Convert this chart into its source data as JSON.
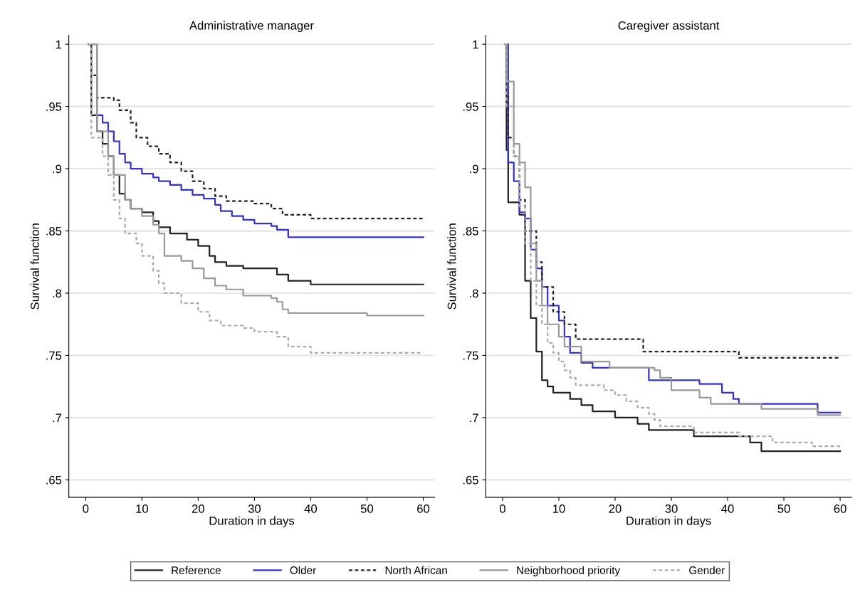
{
  "chart_data": [
    {
      "type": "step",
      "title": "Administrative manager",
      "xlabel": "Duration in days",
      "ylabel": "Survival function",
      "xlim": [
        -3,
        62
      ],
      "ylim": [
        0.636,
        1.007
      ],
      "xticks": [
        0,
        10,
        20,
        30,
        40,
        50,
        60
      ],
      "yticks": [
        {
          "value": 0.65,
          "label": ".65"
        },
        {
          "value": 0.7,
          "label": ".7"
        },
        {
          "value": 0.75,
          "label": ".75"
        },
        {
          "value": 0.8,
          "label": ".8"
        },
        {
          "value": 0.85,
          "label": ".85"
        },
        {
          "value": 0.9,
          "label": ".9"
        },
        {
          "value": 0.95,
          "label": ".95"
        },
        {
          "value": 1,
          "label": "1"
        }
      ],
      "grid": "y",
      "legend": "bottom",
      "series": [
        {
          "name": "Reference",
          "color": "#222222",
          "line_style": "solid",
          "x": [
            0.5,
            1,
            2,
            3,
            4,
            5,
            6,
            7,
            8,
            10,
            12,
            13,
            15,
            18,
            20,
            22,
            23,
            25,
            28,
            33,
            34,
            36,
            40,
            60
          ],
          "values": [
            1,
            0.943,
            0.93,
            0.92,
            0.91,
            0.895,
            0.88,
            0.875,
            0.868,
            0.865,
            0.858,
            0.853,
            0.848,
            0.843,
            0.838,
            0.83,
            0.825,
            0.822,
            0.82,
            0.82,
            0.815,
            0.81,
            0.807,
            0.807
          ]
        },
        {
          "name": "Older",
          "color": "#3333cc",
          "line_style": "solid",
          "x": [
            0.5,
            2,
            3,
            4,
            5,
            6,
            7,
            8,
            10,
            12,
            13,
            15,
            17,
            19,
            21,
            23,
            24,
            26,
            28,
            30,
            33,
            34,
            36,
            60
          ],
          "values": [
            1,
            0.943,
            0.937,
            0.93,
            0.922,
            0.912,
            0.905,
            0.9,
            0.896,
            0.893,
            0.89,
            0.887,
            0.883,
            0.879,
            0.876,
            0.871,
            0.866,
            0.862,
            0.859,
            0.856,
            0.854,
            0.851,
            0.845,
            0.845
          ]
        },
        {
          "name": "North African",
          "color": "#222222",
          "line_style": "dashed",
          "x": [
            0.5,
            1,
            2,
            5,
            6,
            8,
            9,
            11,
            13,
            15,
            17,
            19,
            21,
            23,
            25,
            30,
            33,
            35,
            40,
            60
          ],
          "values": [
            1,
            0.975,
            0.957,
            0.955,
            0.947,
            0.937,
            0.925,
            0.918,
            0.912,
            0.905,
            0.898,
            0.89,
            0.884,
            0.878,
            0.874,
            0.872,
            0.868,
            0.863,
            0.86,
            0.86
          ]
        },
        {
          "name": "Neighborhood priority",
          "color": "#999999",
          "line_style": "solid",
          "x": [
            0.5,
            2,
            4,
            5,
            7,
            8,
            10,
            12,
            13,
            14,
            17,
            19,
            21,
            23,
            25,
            28,
            33,
            34,
            35,
            36,
            50,
            60
          ],
          "values": [
            1,
            0.93,
            0.91,
            0.895,
            0.875,
            0.868,
            0.862,
            0.855,
            0.848,
            0.83,
            0.826,
            0.82,
            0.812,
            0.806,
            0.803,
            0.798,
            0.796,
            0.793,
            0.787,
            0.784,
            0.782,
            0.782
          ]
        },
        {
          "name": "Gender",
          "color": "#aaaaaa",
          "line_style": "dashed",
          "x": [
            0.5,
            1,
            3,
            4,
            5,
            6,
            7,
            9,
            10,
            12,
            13,
            14,
            17,
            20,
            22,
            24,
            28,
            30,
            34,
            36,
            40,
            60
          ],
          "values": [
            1,
            0.925,
            0.91,
            0.895,
            0.875,
            0.86,
            0.848,
            0.84,
            0.83,
            0.818,
            0.808,
            0.8,
            0.792,
            0.785,
            0.778,
            0.774,
            0.772,
            0.769,
            0.765,
            0.757,
            0.752,
            0.752
          ]
        }
      ]
    },
    {
      "type": "step",
      "title": "Caregiver assistant",
      "xlabel": "Duration in days",
      "ylabel": "Survival function",
      "xlim": [
        -3,
        62
      ],
      "ylim": [
        0.636,
        1.007
      ],
      "xticks": [
        0,
        10,
        20,
        30,
        40,
        50,
        60
      ],
      "yticks": [
        {
          "value": 0.65,
          "label": ".65"
        },
        {
          "value": 0.7,
          "label": ".7"
        },
        {
          "value": 0.75,
          "label": ".75"
        },
        {
          "value": 0.8,
          "label": ".8"
        },
        {
          "value": 0.85,
          "label": ".85"
        },
        {
          "value": 0.9,
          "label": ".9"
        },
        {
          "value": 0.95,
          "label": ".95"
        },
        {
          "value": 1,
          "label": "1"
        }
      ],
      "grid": "y",
      "legend": "bottom",
      "series": [
        {
          "name": "Reference",
          "color": "#222222",
          "line_style": "solid",
          "x": [
            0.5,
            0.7,
            1,
            3,
            4,
            5,
            6,
            7,
            8,
            9,
            12,
            14,
            16,
            20,
            24,
            26,
            33,
            34,
            42,
            44,
            46,
            60
          ],
          "values": [
            1,
            0.915,
            0.873,
            0.863,
            0.81,
            0.78,
            0.753,
            0.73,
            0.725,
            0.72,
            0.715,
            0.71,
            0.705,
            0.7,
            0.695,
            0.69,
            0.69,
            0.685,
            0.685,
            0.68,
            0.673,
            0.673
          ]
        },
        {
          "name": "Older",
          "color": "#3333cc",
          "line_style": "solid",
          "x": [
            0.5,
            1,
            2,
            3,
            4,
            5,
            6,
            7,
            8,
            10,
            11,
            12,
            14,
            16,
            25,
            26,
            35,
            39,
            41,
            42,
            56,
            60
          ],
          "values": [
            1,
            0.905,
            0.89,
            0.865,
            0.86,
            0.835,
            0.82,
            0.805,
            0.79,
            0.778,
            0.765,
            0.752,
            0.744,
            0.74,
            0.74,
            0.73,
            0.727,
            0.72,
            0.715,
            0.711,
            0.704,
            0.704
          ]
        },
        {
          "name": "North African",
          "color": "#222222",
          "line_style": "dashed",
          "x": [
            0.5,
            0.7,
            1,
            2,
            3,
            4,
            6,
            7,
            9,
            11,
            13,
            25,
            42,
            60
          ],
          "values": [
            1,
            0.96,
            0.925,
            0.91,
            0.875,
            0.85,
            0.825,
            0.805,
            0.785,
            0.775,
            0.763,
            0.753,
            0.748,
            0.748
          ]
        },
        {
          "name": "Neighborhood priority",
          "color": "#999999",
          "line_style": "solid",
          "x": [
            0.5,
            0.8,
            2,
            3,
            4,
            5,
            6,
            7,
            8,
            10,
            11,
            14,
            19,
            27,
            28,
            30,
            35,
            37,
            46,
            56,
            60
          ],
          "values": [
            1,
            0.97,
            0.92,
            0.905,
            0.885,
            0.84,
            0.81,
            0.79,
            0.775,
            0.765,
            0.757,
            0.745,
            0.74,
            0.738,
            0.732,
            0.722,
            0.716,
            0.711,
            0.707,
            0.702,
            0.702
          ]
        },
        {
          "name": "Gender",
          "color": "#aaaaaa",
          "line_style": "dashed",
          "x": [
            0.5,
            0.7,
            2,
            3,
            4,
            5,
            6,
            7,
            8,
            9,
            10,
            11,
            12,
            13,
            18,
            20,
            22,
            24,
            26,
            27,
            28,
            34,
            42,
            48,
            55,
            60
          ],
          "values": [
            1,
            0.95,
            0.91,
            0.87,
            0.84,
            0.81,
            0.79,
            0.775,
            0.76,
            0.752,
            0.745,
            0.738,
            0.732,
            0.726,
            0.722,
            0.718,
            0.713,
            0.708,
            0.703,
            0.698,
            0.693,
            0.688,
            0.685,
            0.68,
            0.677,
            0.677
          ]
        }
      ]
    }
  ]
}
